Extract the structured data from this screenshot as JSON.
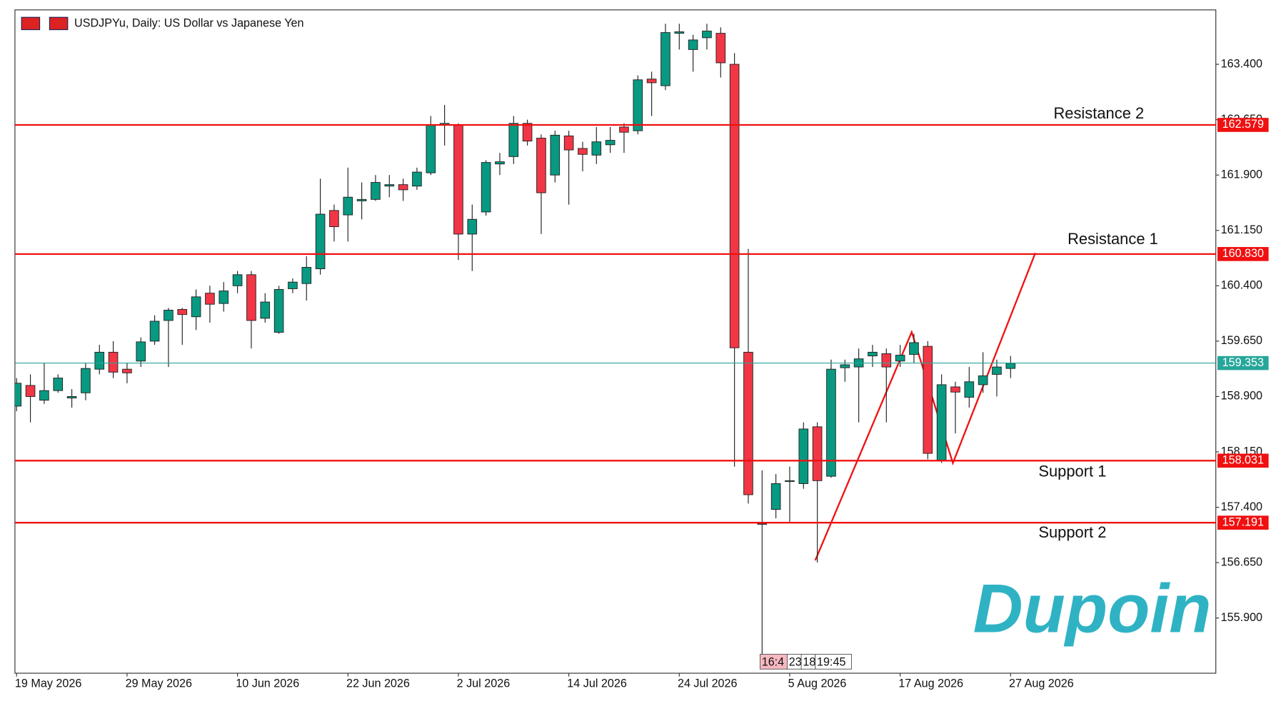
{
  "chart_data": {
    "type": "candlestick",
    "title": "USDJPYu, Daily:  US Dollar vs Japanese Yen",
    "categories": [
      "19 May 2026",
      null,
      null,
      null,
      null,
      null,
      null,
      null,
      "29 May 2026",
      null,
      null,
      null,
      null,
      null,
      null,
      null,
      "10 Jun 2026",
      null,
      null,
      null,
      null,
      null,
      null,
      null,
      "22 Jun 2026",
      null,
      null,
      null,
      null,
      null,
      null,
      null,
      "2 Jul 2026",
      null,
      null,
      null,
      null,
      null,
      null,
      null,
      "14 Jul 2026",
      null,
      null,
      null,
      null,
      null,
      null,
      null,
      "24 Jul 2026",
      null,
      null,
      null,
      null,
      null,
      null,
      null,
      "5 Aug 2026",
      null,
      null,
      null,
      null,
      null,
      null,
      null,
      "17 Aug 2026",
      null,
      null,
      null,
      null,
      null,
      null,
      null,
      "27 Aug 2026"
    ],
    "open": [
      158.77,
      159.05,
      158.85,
      158.98,
      158.88,
      158.95,
      159.27,
      159.5,
      159.27,
      159.38,
      159.65,
      159.93,
      160.08,
      159.98,
      160.3,
      160.16,
      160.4,
      160.55,
      159.96,
      159.77,
      160.36,
      160.43,
      160.63,
      161.42,
      161.36,
      161.55,
      161.57,
      161.75,
      161.77,
      161.75,
      161.93,
      162.58,
      162.58,
      161.1,
      161.4,
      162.05,
      162.15,
      162.6,
      162.4,
      161.9,
      162.43,
      162.26,
      162.17,
      162.31,
      162.55,
      162.5,
      163.2,
      163.11,
      163.82,
      163.6,
      163.76,
      163.82,
      163.4,
      159.5,
      157.18,
      157.37,
      157.75,
      157.72,
      158.49,
      157.82,
      159.29,
      159.3,
      159.45,
      159.48,
      159.38,
      159.47,
      159.58,
      158.04,
      159.03,
      158.89,
      159.06,
      159.2,
      159.28
    ],
    "high": [
      159.15,
      159.2,
      159.35,
      159.2,
      159.0,
      159.35,
      159.6,
      159.65,
      159.35,
      159.7,
      160.0,
      160.1,
      160.1,
      160.35,
      160.4,
      160.45,
      160.6,
      160.6,
      160.3,
      160.4,
      160.5,
      160.8,
      161.85,
      161.5,
      162.0,
      161.8,
      161.9,
      161.9,
      161.85,
      162.0,
      162.7,
      162.85,
      162.6,
      161.5,
      162.1,
      162.2,
      162.7,
      162.65,
      162.45,
      162.5,
      162.5,
      162.35,
      162.55,
      162.55,
      162.6,
      163.25,
      163.3,
      163.95,
      163.95,
      163.8,
      163.95,
      163.9,
      163.55,
      160.9,
      157.9,
      157.85,
      157.95,
      158.55,
      158.55,
      159.4,
      159.4,
      159.55,
      159.6,
      159.55,
      159.6,
      159.75,
      159.65,
      159.2,
      159.1,
      159.3,
      159.5,
      159.4,
      159.45
    ],
    "low": [
      158.7,
      158.55,
      158.8,
      158.95,
      158.75,
      158.85,
      159.2,
      159.15,
      159.08,
      159.3,
      159.6,
      159.3,
      159.6,
      159.8,
      159.9,
      160.05,
      160.3,
      159.55,
      159.9,
      159.75,
      160.3,
      160.2,
      160.55,
      161.0,
      161.0,
      161.3,
      161.55,
      161.6,
      161.55,
      161.7,
      161.9,
      162.3,
      160.75,
      160.6,
      161.35,
      161.9,
      162.05,
      162.3,
      161.1,
      161.8,
      161.5,
      161.95,
      162.05,
      162.2,
      162.2,
      162.45,
      162.7,
      163.05,
      163.6,
      163.3,
      163.6,
      163.22,
      157.95,
      157.45,
      155.4,
      157.25,
      157.2,
      157.65,
      156.65,
      157.8,
      159.1,
      158.55,
      159.3,
      158.55,
      159.3,
      159.35,
      158.05,
      158.0,
      158.4,
      158.75,
      158.95,
      158.9,
      159.15
    ],
    "close": [
      159.08,
      158.9,
      158.98,
      159.15,
      158.9,
      159.28,
      159.5,
      159.23,
      159.22,
      159.64,
      159.92,
      160.07,
      160.01,
      160.25,
      160.15,
      160.33,
      160.55,
      159.93,
      160.18,
      160.35,
      160.45,
      160.65,
      161.37,
      161.2,
      161.6,
      161.57,
      161.8,
      161.77,
      161.7,
      161.94,
      162.58,
      162.6,
      161.1,
      161.3,
      162.07,
      162.08,
      162.6,
      162.36,
      161.66,
      162.44,
      162.24,
      162.18,
      162.35,
      162.37,
      162.48,
      163.19,
      163.15,
      163.83,
      163.84,
      163.73,
      163.85,
      163.42,
      159.56,
      157.57,
      157.17,
      157.72,
      157.76,
      158.46,
      157.76,
      159.27,
      159.33,
      159.41,
      159.5,
      159.3,
      159.46,
      159.63,
      158.13,
      159.06,
      158.96,
      159.1,
      159.18,
      159.3,
      159.35
    ],
    "up_color": "#089981",
    "down_color": "#f23645",
    "ylim": [
      155.152,
      164.137
    ],
    "yticks": [
      {
        "value": 155.9,
        "label": "155.900"
      },
      {
        "value": 156.65,
        "label": "156.650"
      },
      {
        "value": 157.4,
        "label": "157.400"
      },
      {
        "value": 158.15,
        "label": "158.150"
      },
      {
        "value": 158.9,
        "label": "158.900"
      },
      {
        "value": 159.65,
        "label": "159.650"
      },
      {
        "value": 160.4,
        "label": "160.400"
      },
      {
        "value": 161.15,
        "label": "161.150"
      },
      {
        "value": 161.9,
        "label": "161.900"
      },
      {
        "value": 162.65,
        "label": "162.650"
      },
      {
        "value": 163.4,
        "label": "163.400"
      }
    ],
    "levels": [
      {
        "name": "Resistance 2",
        "value": 162.579,
        "value_label": "162.579"
      },
      {
        "name": "Resistance 1",
        "value": 160.83,
        "value_label": "160.830"
      },
      {
        "name": "Support 1",
        "value": 158.031,
        "value_label": "158.031"
      },
      {
        "name": "Support 2",
        "value": 157.191,
        "value_label": "157.191"
      }
    ],
    "level_color": "#f01010",
    "current_price": {
      "value": 159.353,
      "value_label": "159.353",
      "color": "#26a69a"
    },
    "time_markers": [
      "16:4",
      "23",
      "18",
      "19:45"
    ],
    "watermark": "Dupoin"
  }
}
